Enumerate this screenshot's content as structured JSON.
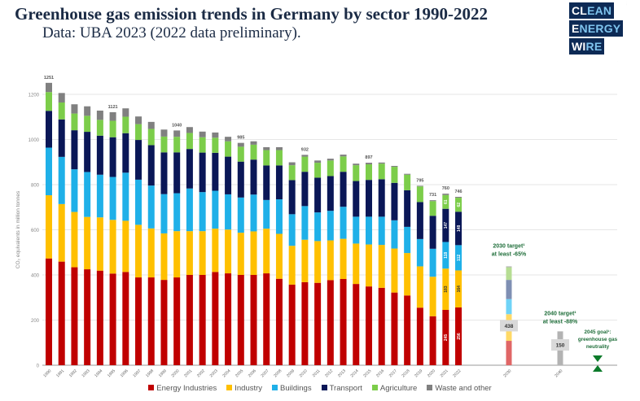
{
  "header": {
    "title": "Greenhouse gas emission trends in Germany by sector 1990-2022",
    "subtitle": "Data: UBA 2023 (2022 data preliminary).",
    "logo": [
      "CLEAN",
      "ENERGY",
      "WIRE"
    ]
  },
  "chart_data": {
    "type": "bar",
    "stacked": true,
    "ylabel": "CO₂ equivalents in million tonnes",
    "ylim": [
      0,
      1250
    ],
    "yticks": [
      0,
      200,
      400,
      600,
      800,
      1000,
      1200
    ],
    "grid": true,
    "legend_position": "bottom",
    "categories": [
      "1990",
      "1991",
      "1992",
      "1993",
      "1994",
      "1995",
      "1996",
      "1997",
      "1998",
      "1999",
      "2000",
      "2001",
      "2002",
      "2003",
      "2004",
      "2005",
      "2006",
      "2007",
      "2008",
      "2009",
      "2010",
      "2011",
      "2012",
      "2013",
      "2014",
      "2015",
      "2016",
      "2017",
      "2018",
      "2019",
      "2020",
      "2021",
      "2022"
    ],
    "series": [
      {
        "name": "Energy Industries",
        "color": "#c00000",
        "values": [
          473,
          459,
          434,
          425,
          419,
          406,
          413,
          389,
          389,
          378,
          389,
          400,
          400,
          413,
          407,
          400,
          400,
          407,
          383,
          357,
          368,
          365,
          377,
          382,
          360,
          349,
          343,
          322,
          309,
          255,
          217,
          245,
          256
        ]
      },
      {
        "name": "Industry",
        "color": "#ffc000",
        "values": [
          280,
          255,
          245,
          232,
          236,
          238,
          227,
          233,
          217,
          206,
          205,
          194,
          194,
          192,
          194,
          187,
          193,
          198,
          199,
          172,
          188,
          185,
          176,
          178,
          179,
          186,
          190,
          195,
          188,
          183,
          175,
          183,
          164
        ]
      },
      {
        "name": "Buildings",
        "color": "#1fb0e8",
        "values": [
          211,
          209,
          189,
          199,
          189,
          190,
          213,
          200,
          190,
          174,
          168,
          189,
          173,
          168,
          156,
          156,
          163,
          127,
          153,
          140,
          149,
          127,
          131,
          142,
          119,
          123,
          125,
          125,
          116,
          121,
          124,
          118,
          112
        ]
      },
      {
        "name": "Transport",
        "color": "#0a1757",
        "values": [
          163,
          166,
          173,
          178,
          173,
          176,
          175,
          176,
          179,
          185,
          181,
          175,
          175,
          168,
          167,
          159,
          155,
          153,
          150,
          151,
          152,
          154,
          154,
          155,
          158,
          163,
          166,
          166,
          162,
          164,
          146,
          147,
          148
        ]
      },
      {
        "name": "Agriculture",
        "color": "#7ccd4a",
        "values": [
          83,
          75,
          74,
          71,
          70,
          73,
          73,
          70,
          72,
          70,
          69,
          71,
          68,
          67,
          68,
          66,
          66,
          68,
          68,
          66,
          67,
          66,
          69,
          68,
          70,
          69,
          69,
          71,
          69,
          69,
          65,
          61,
          62
        ]
      },
      {
        "name": "Waste and other",
        "color": "#808080",
        "values": [
          41,
          42,
          41,
          42,
          41,
          38,
          37,
          34,
          31,
          31,
          28,
          26,
          25,
          23,
          20,
          17,
          15,
          13,
          13,
          13,
          8,
          10,
          8,
          8,
          7,
          7,
          5,
          4,
          4,
          3,
          4,
          6,
          4
        ]
      }
    ],
    "total_labels": {
      "1990": "1251",
      "1995": "1121",
      "2000": "1040",
      "2005": "985",
      "2010": "932",
      "2015": "897",
      "2019": "795",
      "2020": "731",
      "2021": "760",
      "2022": "746"
    },
    "segment_labels": {
      "2021": [
        "245",
        "183",
        "118",
        "147",
        "61"
      ],
      "2022": [
        "256",
        "164",
        "112",
        "148",
        "62"
      ]
    },
    "targets": [
      {
        "year": "2030",
        "label_line1": "2030 target¹",
        "label_line2": "at least -65%",
        "total": 438,
        "value_label": "438",
        "segments": [
          108,
          118,
          67,
          85,
          56,
          4
        ],
        "colors": [
          "#e06666",
          "#ffd966",
          "#6fd3f7",
          "#7f8fb3",
          "#b6dd93",
          "#b0b0b0"
        ]
      },
      {
        "year": "2040",
        "label_line1": "2040 target¹",
        "label_line2": "at least -88%",
        "total": 150,
        "value_label": "150",
        "color": "#b3b3b3"
      },
      {
        "year": "2045",
        "label_line1": "2045 goal¹:",
        "label_line2": "greenhouse gas",
        "label_line3": "neutrality",
        "total": 0,
        "color": "#0b7a2a"
      }
    ],
    "target_text_color": "#1f6e3a"
  }
}
